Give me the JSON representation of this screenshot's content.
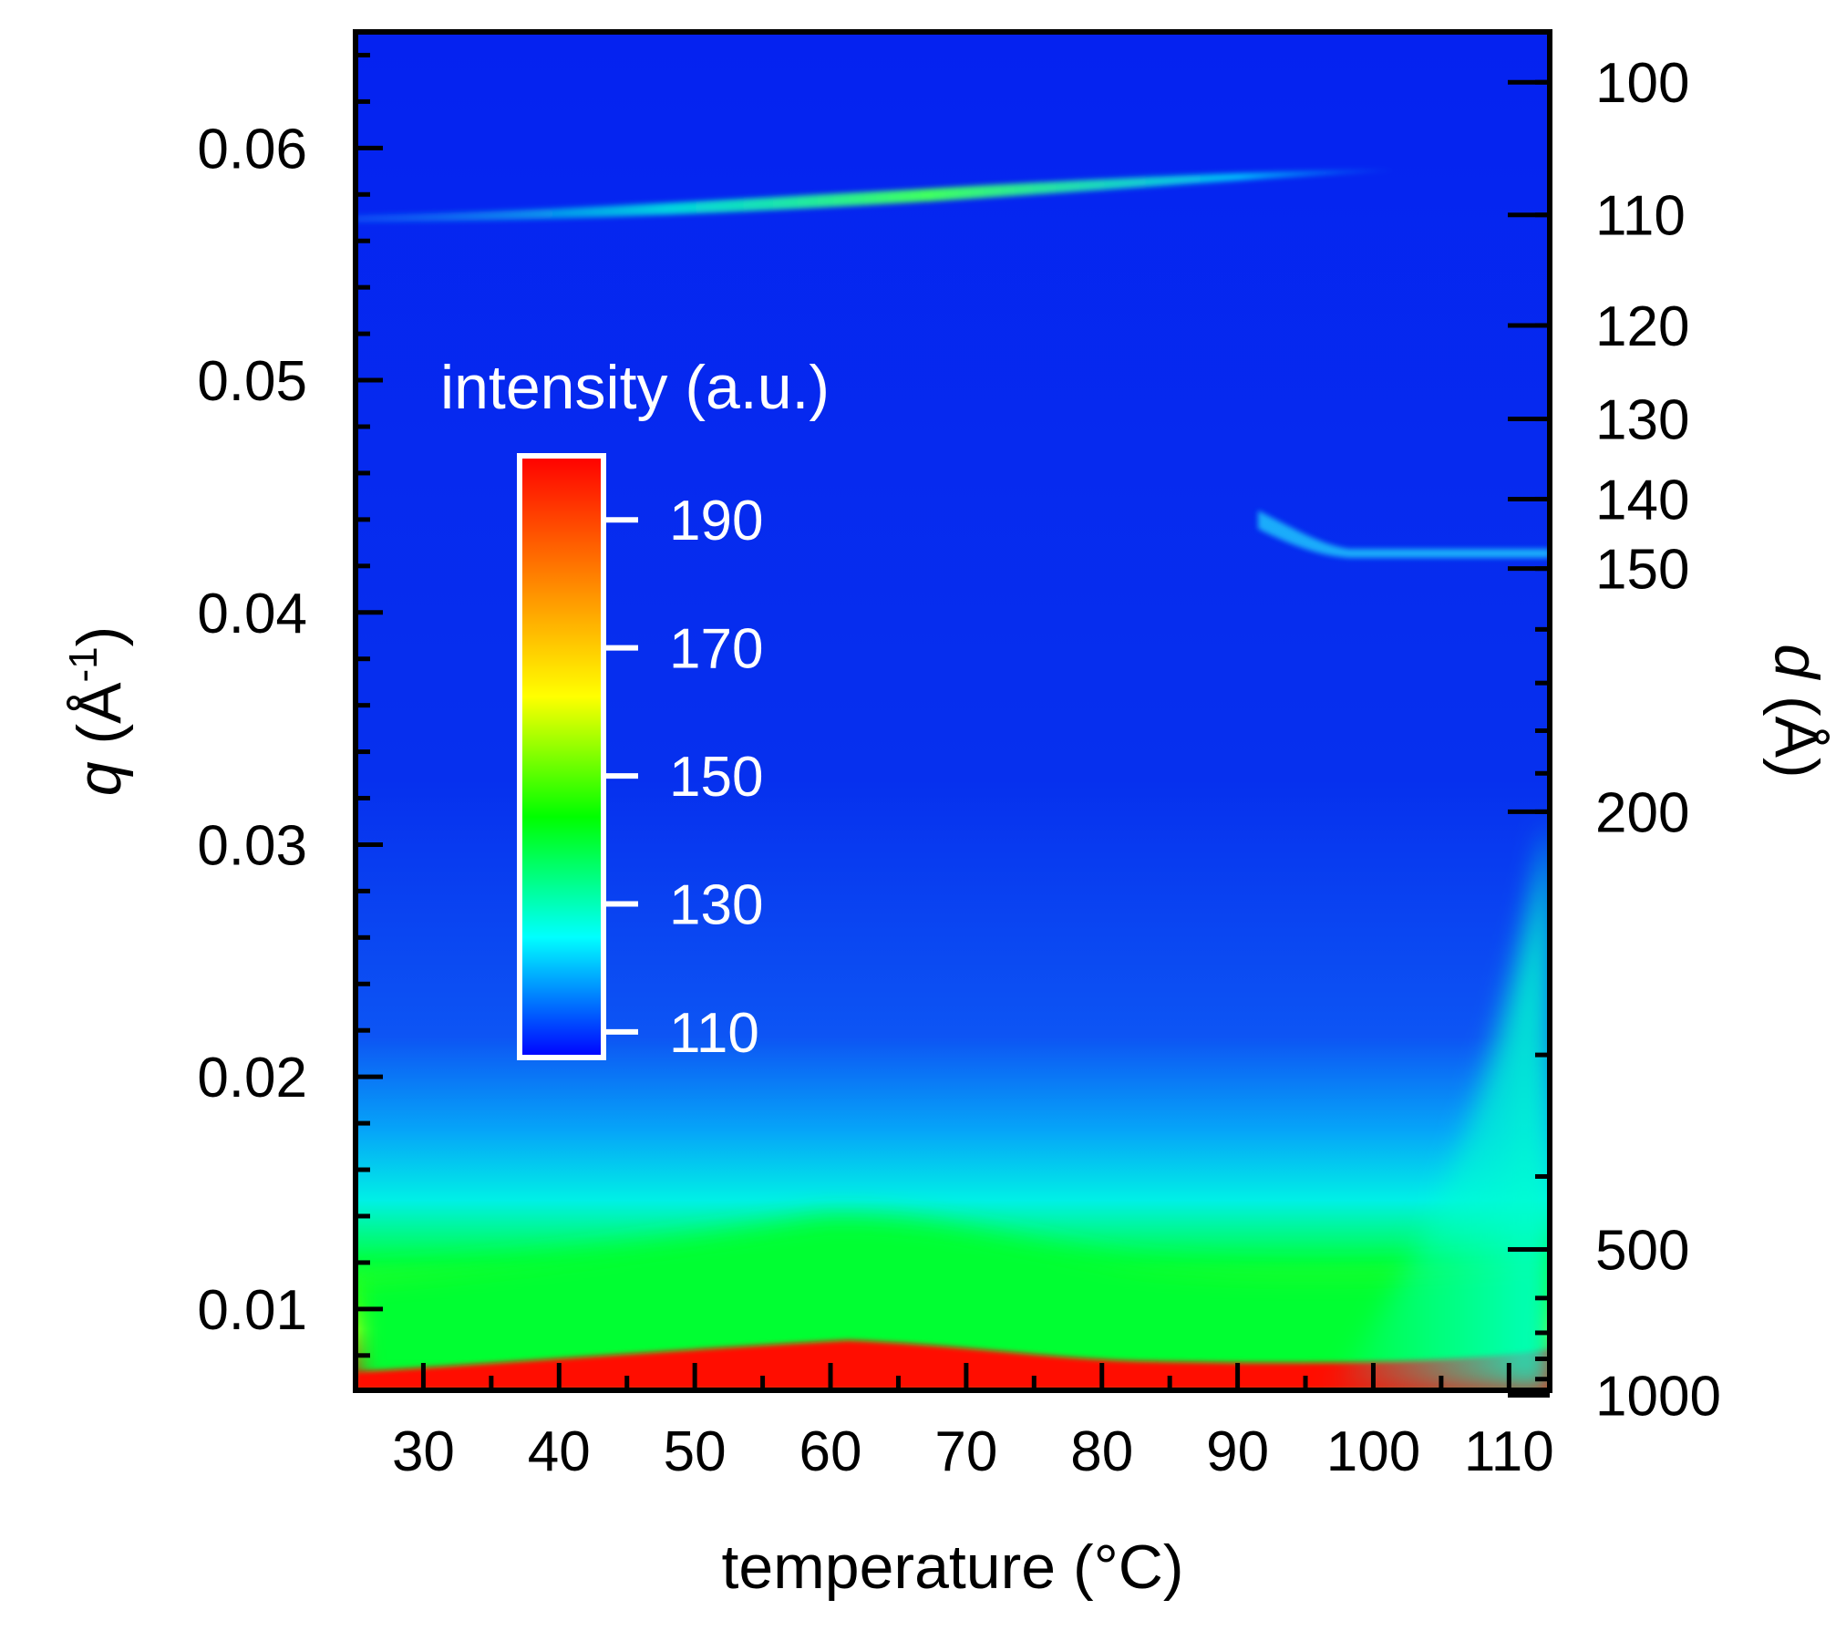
{
  "chart_data": {
    "type": "heatmap",
    "title": "",
    "xlabel": "temperature (°C)",
    "ylabel": {
      "symbol": "q",
      "unit_open": " (Å",
      "unit_exp": "-1",
      "unit_close": ")"
    },
    "y2label": {
      "symbol": "d",
      "unit": " (Å)"
    },
    "xlim": [
      25,
      113
    ],
    "ylim": [
      0.0065,
      0.065
    ],
    "x_ticks": [
      30,
      40,
      50,
      60,
      70,
      80,
      90,
      100,
      110
    ],
    "x_tick_labels": [
      "30",
      "40",
      "50",
      "60",
      "70",
      "80",
      "90",
      "100",
      "110"
    ],
    "y_ticks": [
      0.01,
      0.02,
      0.03,
      0.04,
      0.05,
      0.06
    ],
    "y_tick_labels": [
      "0.01",
      "0.02",
      "0.03",
      "0.04",
      "0.05",
      "0.06"
    ],
    "y2_ticks_d": [
      100,
      110,
      120,
      130,
      140,
      150,
      200,
      500,
      1000
    ],
    "y2_tick_labels": [
      "100",
      "110",
      "120",
      "130",
      "140",
      "150",
      "200",
      "500",
      "1000"
    ],
    "colorbar": {
      "label": "intensity (a.u.)",
      "range": [
        106,
        200
      ],
      "ticks": [
        110,
        130,
        150,
        170,
        190
      ],
      "tick_labels": [
        "110",
        "130",
        "150",
        "170",
        "190"
      ],
      "colors": [
        "#0000ff",
        "#00ffff",
        "#00ff00",
        "#ffff00",
        "#ff8000",
        "#ff0000"
      ]
    },
    "features": [
      {
        "name": "upper peak",
        "q_start": 0.0569,
        "q_end": 0.0592,
        "t_start": 25,
        "t_end": 104,
        "peak_intensity": 158
      },
      {
        "name": "middle peak",
        "q": 0.0423,
        "t_start": 95,
        "t_end": 113,
        "peak_intensity": 128
      },
      {
        "name": "low-q scattering",
        "q_max": 0.015,
        "peak_intensity": 200
      }
    ]
  }
}
